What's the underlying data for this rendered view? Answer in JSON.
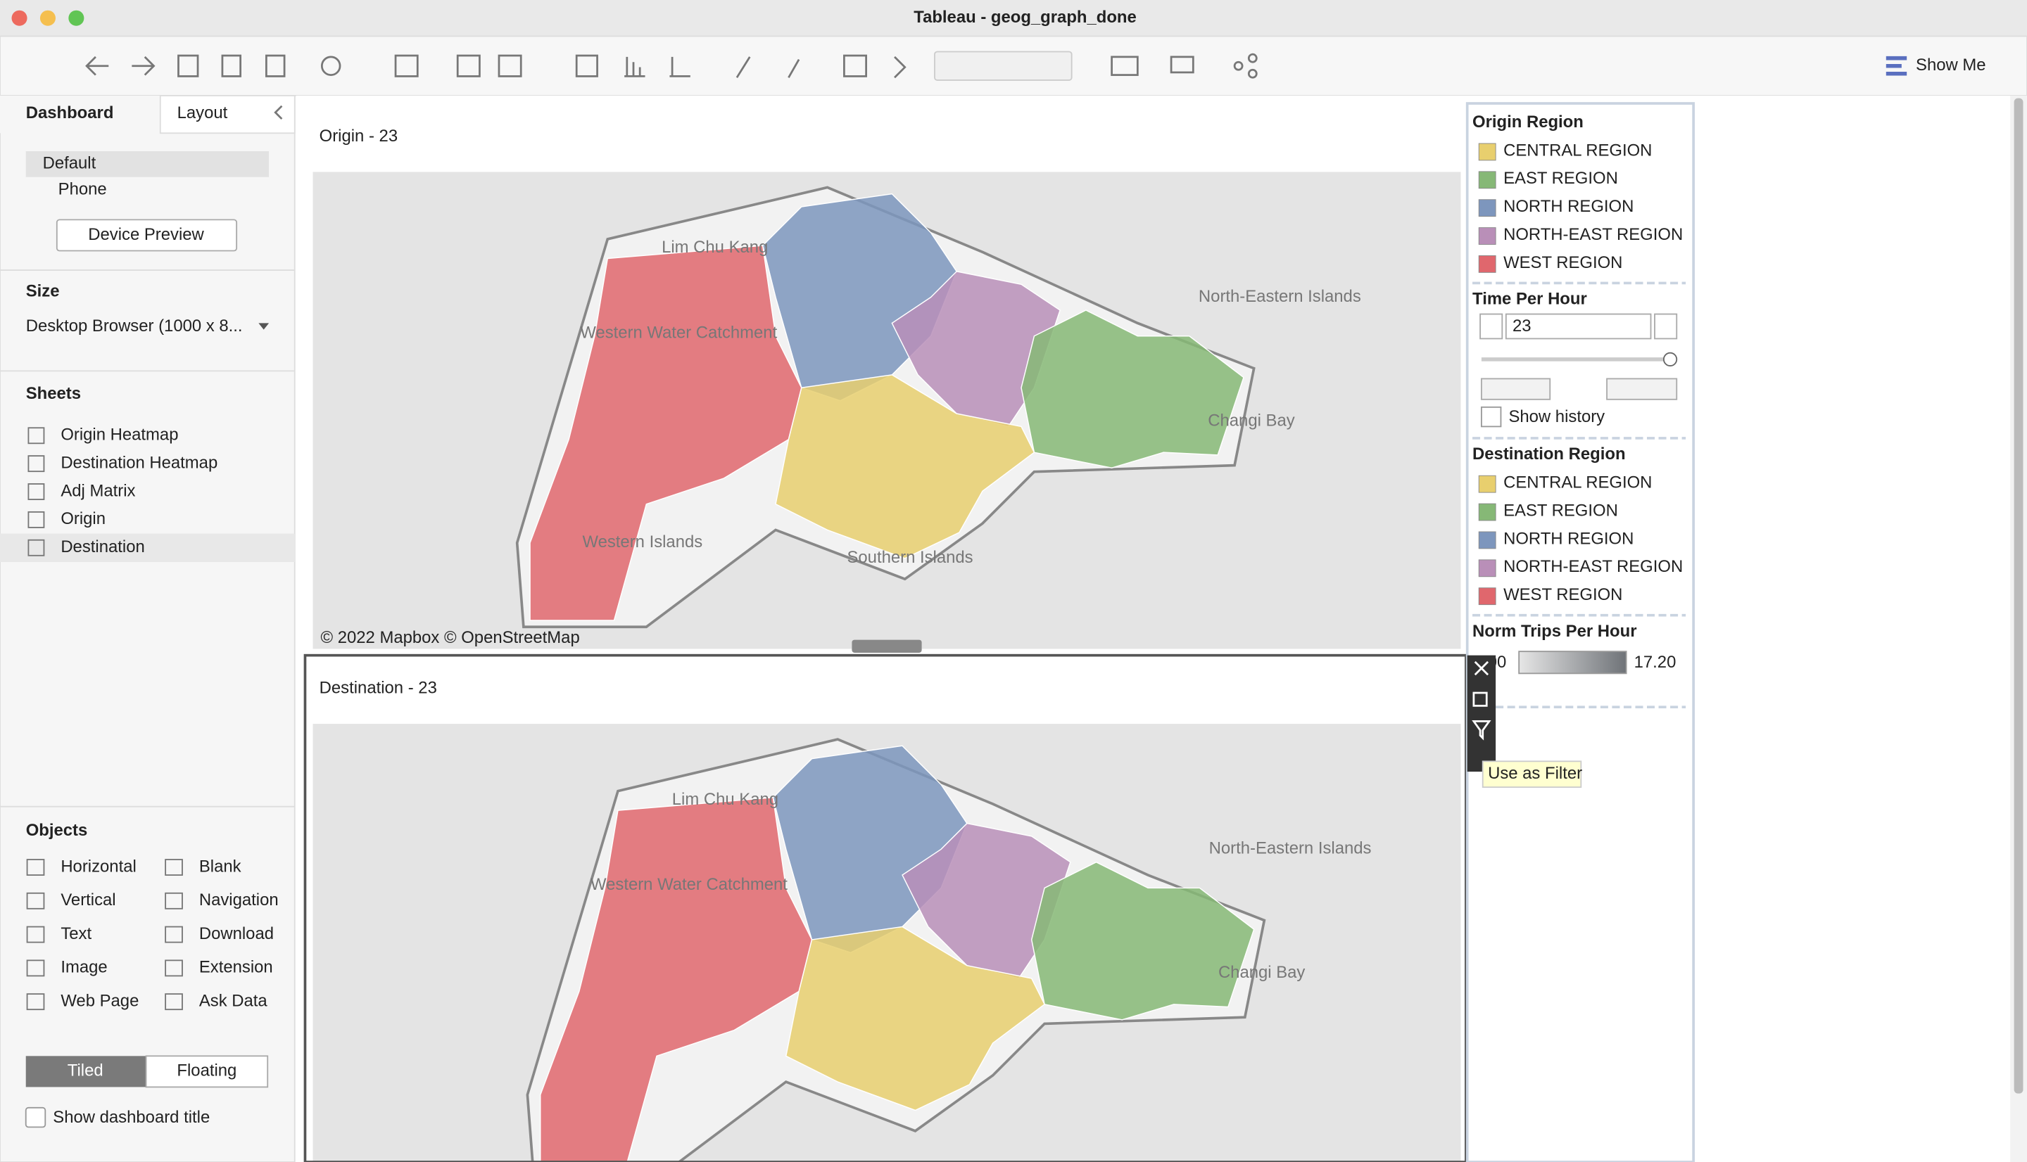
{
  "window": {
    "title": "Tableau - geog_graph_done"
  },
  "toolbar": {
    "show_me": "Show Me"
  },
  "side_panel": {
    "tabs": [
      "Dashboard",
      "Layout"
    ],
    "device_options": [
      "Default",
      "Phone"
    ],
    "device_preview": "Device Preview",
    "size_heading": "Size",
    "size_value": "Desktop Browser (1000 x 8...",
    "sheets_heading": "Sheets",
    "sheets": [
      "Origin Heatmap",
      "Destination Heatmap",
      "Adj Matrix",
      "Origin",
      "Destination"
    ],
    "objects_heading": "Objects",
    "objects": [
      "Horizontal",
      "Blank",
      "Vertical",
      "Navigation",
      "Text",
      "Download",
      "Image",
      "Extension",
      "Web Page",
      "Ask Data"
    ],
    "layout_modes": [
      "Tiled",
      "Floating"
    ],
    "show_title": "Show dashboard title"
  },
  "maps": [
    {
      "title": "Origin - 23",
      "labels": [
        "Lim Chu Kang",
        "Western Water Catchment",
        "North-Eastern Islands",
        "Changi Bay",
        "Western Islands",
        "Southern Islands"
      ],
      "attribution": "© 2022 Mapbox © OpenStreetMap"
    },
    {
      "title": "Destination - 23",
      "labels": [
        "Lim Chu Kang",
        "Western Water Catchment",
        "North-Eastern Islands",
        "Changi Bay"
      ]
    }
  ],
  "legends": {
    "origin_region": {
      "title": "Origin Region",
      "items": [
        {
          "name": "CENTRAL REGION",
          "color": "#e8cf6e"
        },
        {
          "name": "EAST REGION",
          "color": "#86b876"
        },
        {
          "name": "NORTH REGION",
          "color": "#7d96bd"
        },
        {
          "name": "NORTH-EAST REGION",
          "color": "#b98fb8"
        },
        {
          "name": "WEST REGION",
          "color": "#e0676d"
        }
      ]
    },
    "time": {
      "title": "Time Per Hour",
      "value": "23",
      "show_history": "Show history"
    },
    "destination_region": {
      "title": "Destination Region",
      "items": [
        {
          "name": "CENTRAL REGION",
          "color": "#e8cf6e"
        },
        {
          "name": "EAST REGION",
          "color": "#86b876"
        },
        {
          "name": "NORTH REGION",
          "color": "#7d96bd"
        },
        {
          "name": "NORTH-EAST REGION",
          "color": "#b98fb8"
        },
        {
          "name": "WEST REGION",
          "color": "#e0676d"
        }
      ]
    },
    "norm_trips": {
      "title": "Norm Trips Per Hour",
      "min": "0.00",
      "max": "17.20"
    }
  },
  "tooltip": "Use as Filter"
}
